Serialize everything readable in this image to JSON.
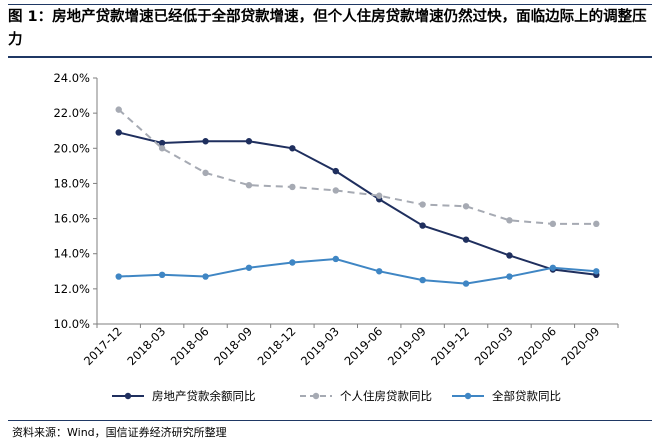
{
  "figure": {
    "title": "图 1：房地产贷款增速已经低于全部贷款增速，但个人住房贷款增速仍然过快，面临边际上的调整压力",
    "source": "资料来源：Wind，国信证券经济研究所整理"
  },
  "chart_data": {
    "type": "line",
    "title": "",
    "xlabel": "",
    "ylabel": "",
    "x": [
      "2017-12",
      "2018-03",
      "2018-06",
      "2018-09",
      "2018-12",
      "2019-03",
      "2019-06",
      "2019-09",
      "2019-12",
      "2020-03",
      "2020-06",
      "2020-09"
    ],
    "ylim": [
      10.0,
      24.0
    ],
    "yticks": [
      "24.0%",
      "22.0%",
      "20.0%",
      "18.0%",
      "16.0%",
      "14.0%",
      "12.0%",
      "10.0%"
    ],
    "grid": false,
    "legend_position": "bottom",
    "series": [
      {
        "name": "房地产贷款余额同比",
        "color": "#1f2f5e",
        "dash": false,
        "values": [
          20.9,
          20.3,
          20.4,
          20.4,
          20.0,
          18.7,
          17.1,
          15.6,
          14.8,
          13.9,
          13.1,
          12.8
        ]
      },
      {
        "name": "个人住房贷款同比",
        "color": "#a6aab3",
        "dash": true,
        "values": [
          22.2,
          20.0,
          18.6,
          17.9,
          17.8,
          17.6,
          17.3,
          16.8,
          16.7,
          15.9,
          15.7,
          15.7
        ]
      },
      {
        "name": "全部贷款同比",
        "color": "#3f86c4",
        "dash": false,
        "values": [
          12.7,
          12.8,
          12.7,
          13.2,
          13.5,
          13.7,
          13.0,
          12.5,
          12.3,
          12.7,
          13.2,
          13.0
        ]
      }
    ]
  }
}
